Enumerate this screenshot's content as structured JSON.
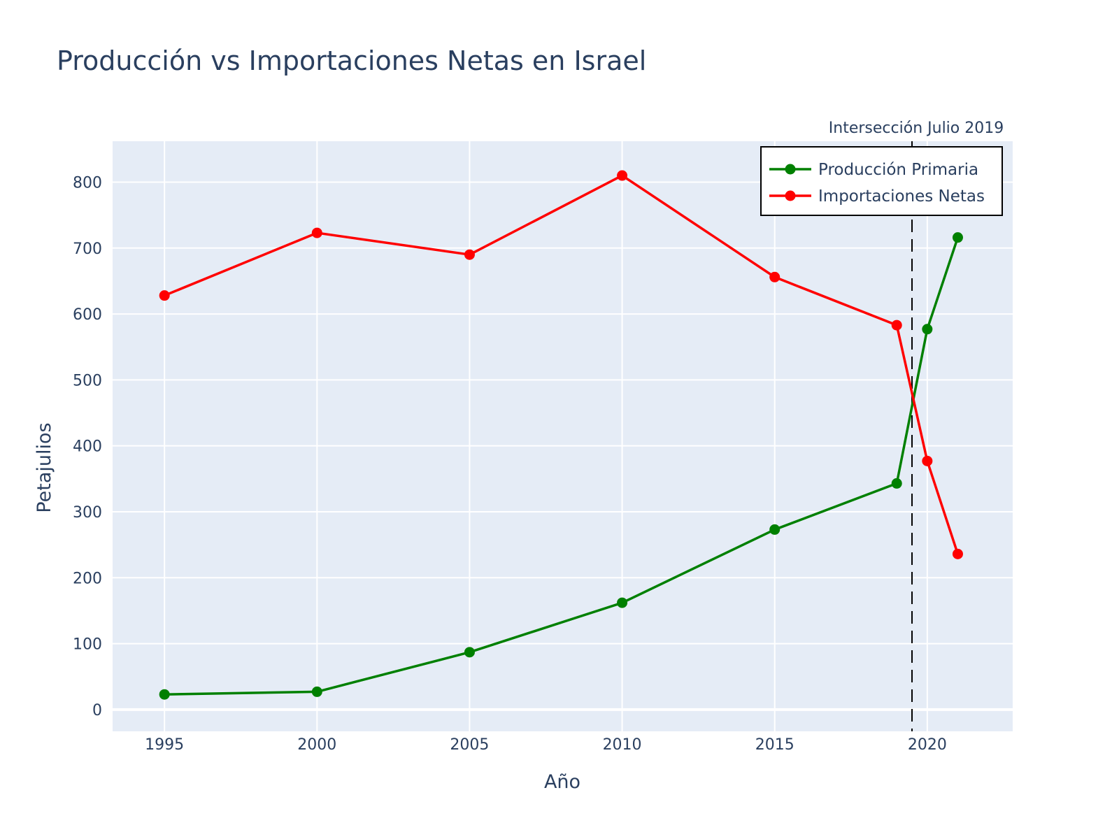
{
  "colors": {
    "plot_background": "#e5ecf6",
    "grid": "#ffffff",
    "production": "#008000",
    "imports": "#ff0000",
    "text": "#2a3f5f"
  },
  "chart_data": {
    "type": "line",
    "title": "Producción vs Importaciones Netas en Israel",
    "xlabel": "Año",
    "ylabel": "Petajulios",
    "xlim": [
      1993.3,
      2022.8
    ],
    "ylim": [
      -33,
      862
    ],
    "x_ticks": [
      1995,
      2000,
      2005,
      2010,
      2015,
      2020
    ],
    "y_ticks": [
      0,
      100,
      200,
      300,
      400,
      500,
      600,
      700,
      800
    ],
    "grid": true,
    "legend_position": "top-right",
    "x": [
      1995,
      2000,
      2005,
      2010,
      2015,
      2019,
      2020,
      2021
    ],
    "series": [
      {
        "name": "Producción Primaria",
        "color": "#008000",
        "values": [
          23,
          27,
          87,
          162,
          273,
          343,
          577,
          716
        ]
      },
      {
        "name": "Importaciones Netas",
        "color": "#ff0000",
        "values": [
          628,
          723,
          690,
          810,
          656,
          583,
          377,
          236
        ]
      }
    ],
    "annotations": [
      {
        "type": "vertical-dashed-line",
        "x": 2019.5,
        "text": "Intersección Julio 2019"
      }
    ]
  }
}
